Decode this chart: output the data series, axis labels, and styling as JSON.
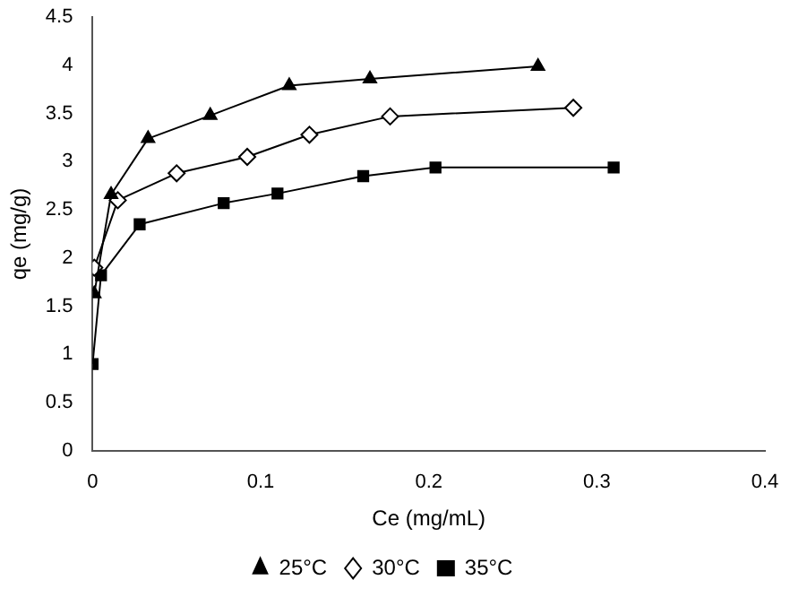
{
  "chart_data": {
    "type": "line",
    "xlabel": "Ce (mg/mL)",
    "ylabel": "qe (mg/g)",
    "xlim": [
      0,
      0.4
    ],
    "xticks": [
      0,
      0.1,
      0.2,
      0.3,
      0.4
    ],
    "ylim": [
      0,
      4.5
    ],
    "yticks": [
      0,
      0.5,
      1,
      1.5,
      2,
      2.5,
      3,
      3.5,
      4,
      4.5
    ],
    "grid": false,
    "legend": "bottom",
    "series": [
      {
        "name": "25°C",
        "color": "#000000",
        "marker": "triangle",
        "x": [
          0.001,
          0.011,
          0.033,
          0.07,
          0.117,
          0.165,
          0.265
        ],
        "values": [
          1.63,
          2.66,
          3.24,
          3.48,
          3.79,
          3.86,
          3.99
        ]
      },
      {
        "name": "30°C",
        "color": "#000000",
        "marker": "diamond",
        "x": [
          0.001,
          0.015,
          0.05,
          0.092,
          0.129,
          0.177,
          0.286
        ],
        "values": [
          1.9,
          2.6,
          2.88,
          3.05,
          3.28,
          3.47,
          3.56
        ]
      },
      {
        "name": "35°C",
        "color": "#000000",
        "marker": "square",
        "x": [
          0,
          0.005,
          0.028,
          0.078,
          0.11,
          0.161,
          0.204,
          0.31
        ],
        "values": [
          0.9,
          1.82,
          2.35,
          2.57,
          2.67,
          2.85,
          2.94,
          2.94
        ]
      }
    ]
  }
}
